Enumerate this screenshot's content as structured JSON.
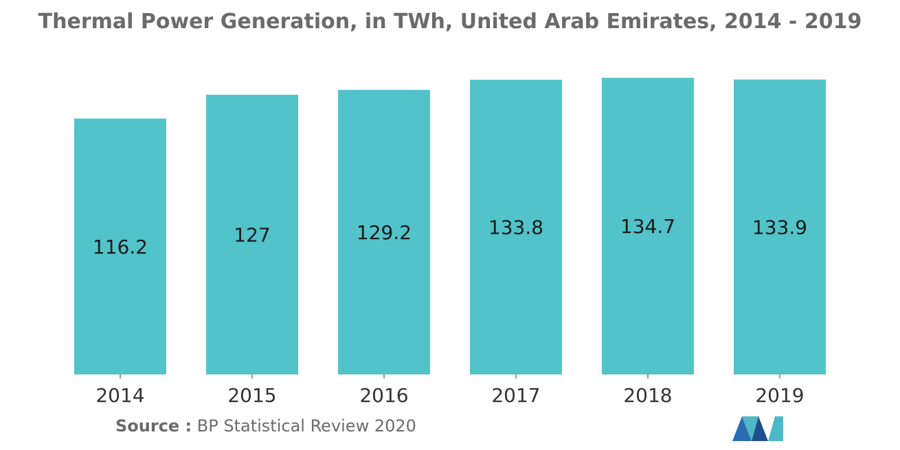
{
  "chart_data": {
    "type": "bar",
    "title": "Thermal Power Generation, in TWh, United Arab Emirates, 2014 - 2019",
    "categories": [
      "2014",
      "2015",
      "2016",
      "2017",
      "2018",
      "2019"
    ],
    "values": [
      116.2,
      127,
      129.2,
      133.8,
      134.7,
      133.9
    ],
    "value_labels": [
      "116.2",
      "127",
      "129.2",
      "133.8",
      "134.7",
      "133.9"
    ],
    "xlabel": "",
    "ylabel": "",
    "ylim": [
      0,
      135.7
    ],
    "grid": false,
    "legend": "none",
    "bar_color": "#52c3c9"
  },
  "source": {
    "label": "Source :",
    "text": "BP Statistical Review 2020"
  },
  "logo": {
    "icon": "mordor-intelligence-logo-icon",
    "colors": [
      "#2b6cb0",
      "#4fb8c8",
      "#1f4f8a"
    ]
  }
}
